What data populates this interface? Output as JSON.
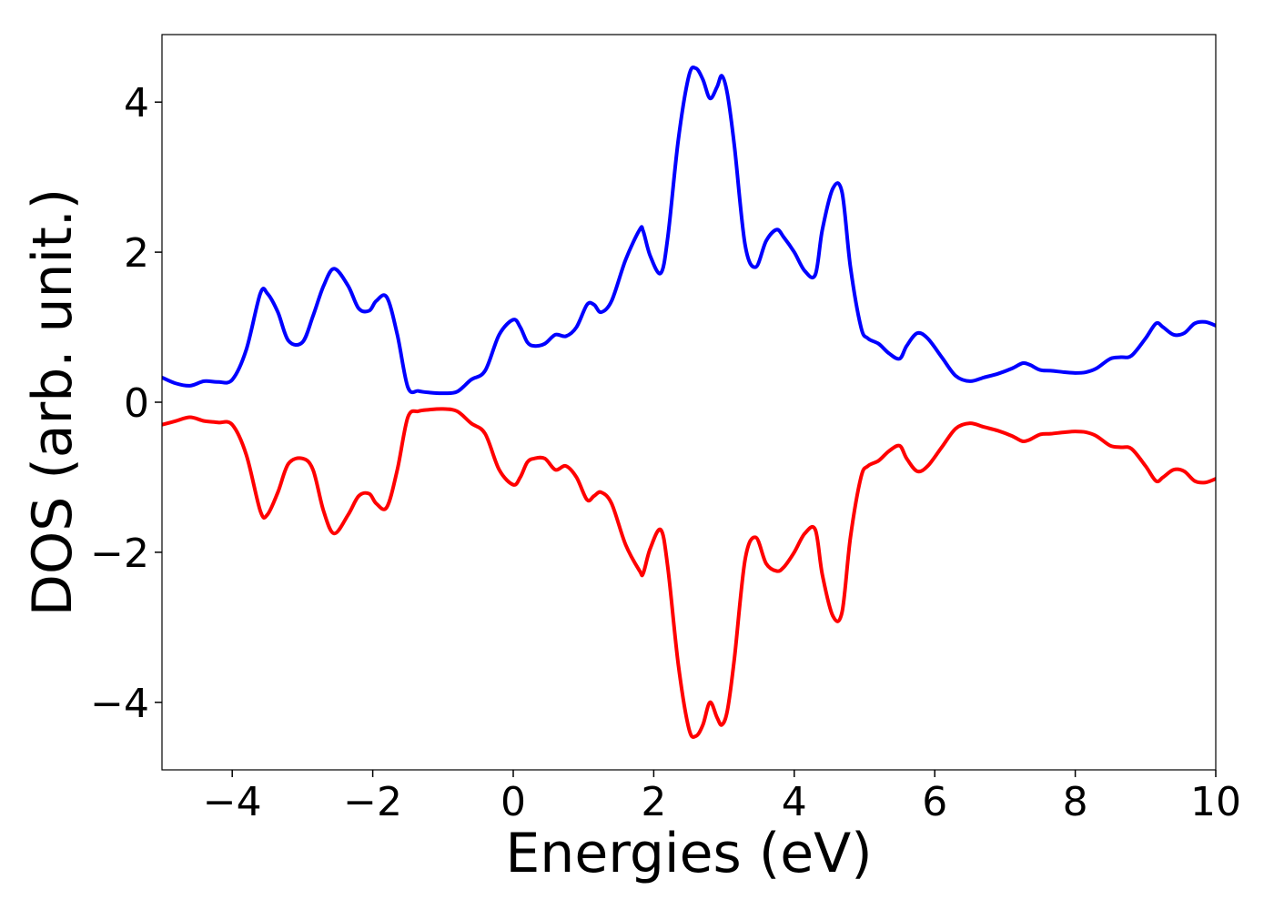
{
  "chart_data": {
    "type": "line",
    "title": "",
    "xlabel": "Energies (eV)",
    "ylabel": "DOS (arb. unit.)",
    "xlim": [
      -5,
      10
    ],
    "ylim": [
      -4.9,
      4.9
    ],
    "xticks": [
      -4,
      -2,
      0,
      2,
      4,
      6,
      8,
      10
    ],
    "xtick_labels": [
      "−4",
      "−2",
      "0",
      "2",
      "4",
      "6",
      "8",
      "10"
    ],
    "yticks": [
      -4,
      -2,
      0,
      2,
      4
    ],
    "ytick_labels": [
      "−4",
      "−2",
      "0",
      "2",
      "4"
    ],
    "grid": false,
    "legend": "none",
    "x": [
      -5.0,
      -4.8,
      -4.6,
      -4.4,
      -4.2,
      -4.0,
      -3.8,
      -3.6,
      -3.5,
      -3.35,
      -3.2,
      -3.0,
      -2.85,
      -2.7,
      -2.55,
      -2.35,
      -2.2,
      -2.05,
      -1.95,
      -1.8,
      -1.65,
      -1.5,
      -1.35,
      -1.2,
      -1.0,
      -0.8,
      -0.6,
      -0.4,
      -0.2,
      0.0,
      0.1,
      0.2,
      0.3,
      0.45,
      0.6,
      0.75,
      0.9,
      1.05,
      1.15,
      1.25,
      1.4,
      1.6,
      1.8,
      1.85,
      1.95,
      2.1,
      2.2,
      2.35,
      2.5,
      2.6,
      2.7,
      2.8,
      2.9,
      2.97,
      3.05,
      3.15,
      3.3,
      3.45,
      3.6,
      3.75,
      3.85,
      4.0,
      4.15,
      4.3,
      4.4,
      4.55,
      4.68,
      4.8,
      4.95,
      5.05,
      5.2,
      5.35,
      5.5,
      5.6,
      5.75,
      5.9,
      6.1,
      6.3,
      6.5,
      6.7,
      6.9,
      7.1,
      7.25,
      7.35,
      7.5,
      7.65,
      7.85,
      8.0,
      8.15,
      8.3,
      8.5,
      8.65,
      8.8,
      9.0,
      9.15,
      9.25,
      9.4,
      9.55,
      9.7,
      9.85,
      10.0
    ],
    "series": [
      {
        "color": "#0000ff",
        "values": [
          0.33,
          0.25,
          0.22,
          0.28,
          0.27,
          0.3,
          0.7,
          1.45,
          1.45,
          1.2,
          0.82,
          0.8,
          1.15,
          1.55,
          1.78,
          1.55,
          1.25,
          1.22,
          1.35,
          1.4,
          0.9,
          0.2,
          0.15,
          0.13,
          0.12,
          0.14,
          0.3,
          0.42,
          0.9,
          1.1,
          1.0,
          0.8,
          0.75,
          0.78,
          0.9,
          0.88,
          1.0,
          1.3,
          1.3,
          1.2,
          1.35,
          1.9,
          2.3,
          2.28,
          1.95,
          1.72,
          2.2,
          3.5,
          4.35,
          4.45,
          4.3,
          4.05,
          4.2,
          4.35,
          4.1,
          3.4,
          2.1,
          1.8,
          2.15,
          2.3,
          2.2,
          2.0,
          1.75,
          1.7,
          2.3,
          2.85,
          2.8,
          1.8,
          1.0,
          0.85,
          0.78,
          0.65,
          0.58,
          0.75,
          0.92,
          0.85,
          0.6,
          0.35,
          0.28,
          0.33,
          0.38,
          0.45,
          0.52,
          0.5,
          0.43,
          0.42,
          0.4,
          0.39,
          0.4,
          0.45,
          0.58,
          0.6,
          0.62,
          0.85,
          1.05,
          1.0,
          0.9,
          0.92,
          1.05,
          1.07,
          1.02
        ]
      },
      {
        "color": "#ff0000",
        "values": [
          -0.3,
          -0.25,
          -0.2,
          -0.25,
          -0.27,
          -0.3,
          -0.7,
          -1.45,
          -1.5,
          -1.2,
          -0.82,
          -0.75,
          -0.9,
          -1.45,
          -1.75,
          -1.5,
          -1.25,
          -1.22,
          -1.35,
          -1.4,
          -0.9,
          -0.2,
          -0.12,
          -0.1,
          -0.09,
          -0.12,
          -0.28,
          -0.42,
          -0.9,
          -1.1,
          -1.0,
          -0.8,
          -0.75,
          -0.75,
          -0.9,
          -0.85,
          -1.0,
          -1.3,
          -1.25,
          -1.2,
          -1.35,
          -1.9,
          -2.25,
          -2.28,
          -1.95,
          -1.7,
          -2.2,
          -3.5,
          -4.35,
          -4.45,
          -4.3,
          -4.0,
          -4.2,
          -4.3,
          -4.1,
          -3.4,
          -2.1,
          -1.8,
          -2.15,
          -2.25,
          -2.2,
          -2.0,
          -1.75,
          -1.7,
          -2.3,
          -2.85,
          -2.8,
          -1.8,
          -1.0,
          -0.85,
          -0.78,
          -0.65,
          -0.58,
          -0.75,
          -0.92,
          -0.85,
          -0.6,
          -0.35,
          -0.28,
          -0.33,
          -0.38,
          -0.45,
          -0.52,
          -0.5,
          -0.43,
          -0.42,
          -0.4,
          -0.39,
          -0.4,
          -0.45,
          -0.58,
          -0.6,
          -0.62,
          -0.85,
          -1.05,
          -1.0,
          -0.9,
          -0.92,
          -1.05,
          -1.07,
          -1.02
        ]
      }
    ]
  }
}
